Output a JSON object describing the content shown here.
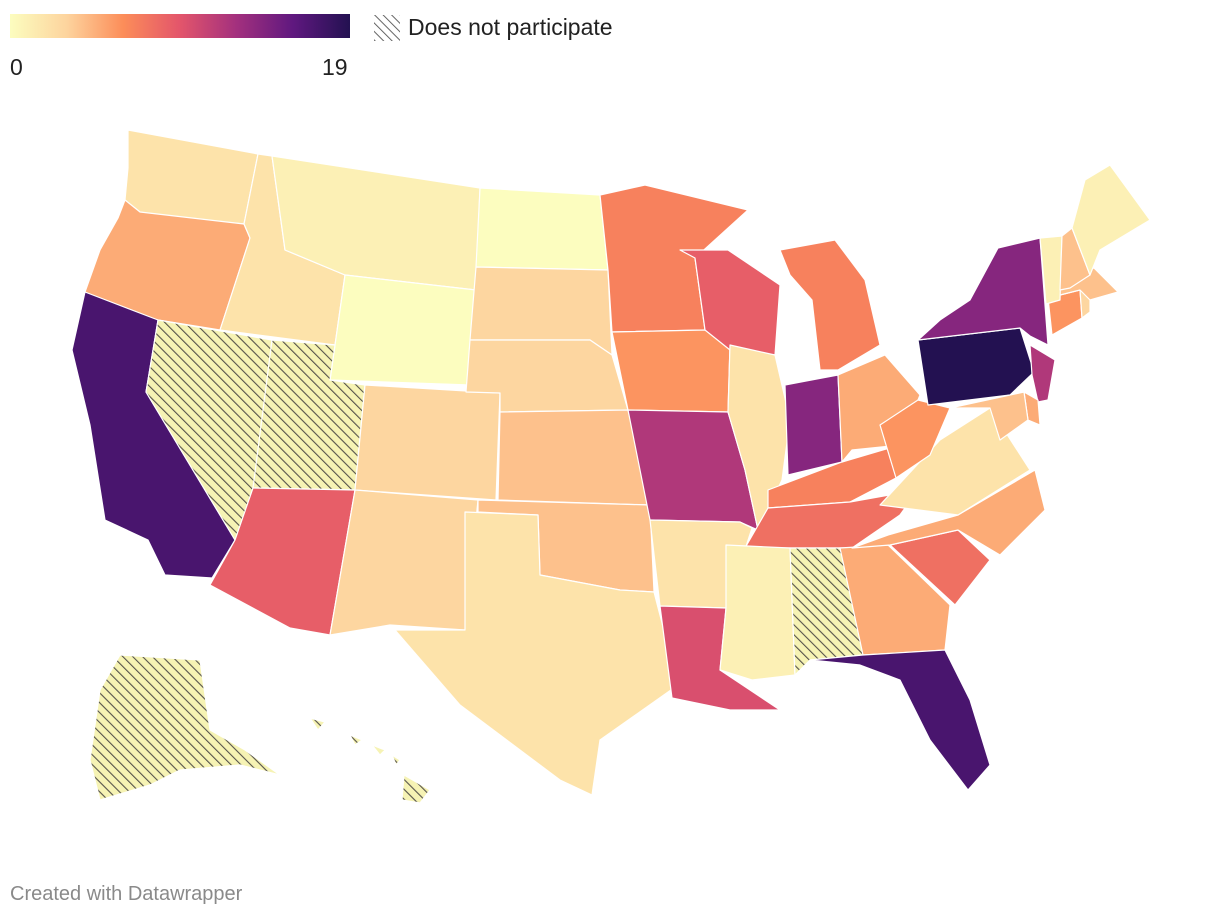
{
  "legend": {
    "min_label": "0",
    "max_label": "19",
    "hatch_label": "Does not participate",
    "gradient": [
      "#fcfdbf",
      "#fdd49e",
      "#fc8d59",
      "#e3556b",
      "#a3307e",
      "#5f187f",
      "#231151"
    ]
  },
  "credit": "Created with Datawrapper",
  "map": {
    "scale": {
      "min": 0,
      "max": 19
    },
    "states": [
      {
        "id": "WA",
        "value": 2
      },
      {
        "id": "OR",
        "value": 5
      },
      {
        "id": "CA",
        "value": 17
      },
      {
        "id": "NV",
        "value": null
      },
      {
        "id": "ID",
        "value": 2
      },
      {
        "id": "MT",
        "value": 1
      },
      {
        "id": "WY",
        "value": 0
      },
      {
        "id": "UT",
        "value": null
      },
      {
        "id": "AZ",
        "value": 9
      },
      {
        "id": "CO",
        "value": 3
      },
      {
        "id": "NM",
        "value": 3
      },
      {
        "id": "ND",
        "value": 0
      },
      {
        "id": "SD",
        "value": 3
      },
      {
        "id": "NE",
        "value": 3
      },
      {
        "id": "KS",
        "value": 4
      },
      {
        "id": "OK",
        "value": 4
      },
      {
        "id": "TX",
        "value": 2
      },
      {
        "id": "MN",
        "value": 7
      },
      {
        "id": "IA",
        "value": 6
      },
      {
        "id": "MO",
        "value": 12
      },
      {
        "id": "AR",
        "value": 2
      },
      {
        "id": "LA",
        "value": 10
      },
      {
        "id": "WI",
        "value": 9
      },
      {
        "id": "IL",
        "value": 2
      },
      {
        "id": "MI",
        "value": 7
      },
      {
        "id": "IN",
        "value": 14
      },
      {
        "id": "OH",
        "value": 5
      },
      {
        "id": "KY",
        "value": 7
      },
      {
        "id": "TN",
        "value": 8
      },
      {
        "id": "MS",
        "value": 1
      },
      {
        "id": "AL",
        "value": null
      },
      {
        "id": "GA",
        "value": 5
      },
      {
        "id": "FL",
        "value": 17
      },
      {
        "id": "SC",
        "value": 8
      },
      {
        "id": "NC",
        "value": 5
      },
      {
        "id": "VA",
        "value": 2
      },
      {
        "id": "WV",
        "value": 6
      },
      {
        "id": "PA",
        "value": 19
      },
      {
        "id": "NY",
        "value": 14
      },
      {
        "id": "NJ",
        "value": 12
      },
      {
        "id": "DE",
        "value": 5
      },
      {
        "id": "MD",
        "value": 4
      },
      {
        "id": "CT",
        "value": 6
      },
      {
        "id": "RI",
        "value": 3
      },
      {
        "id": "MA",
        "value": 4
      },
      {
        "id": "VT",
        "value": 1
      },
      {
        "id": "NH",
        "value": 4
      },
      {
        "id": "ME",
        "value": 1
      },
      {
        "id": "AK",
        "value": null
      },
      {
        "id": "HI",
        "value": null
      }
    ]
  }
}
